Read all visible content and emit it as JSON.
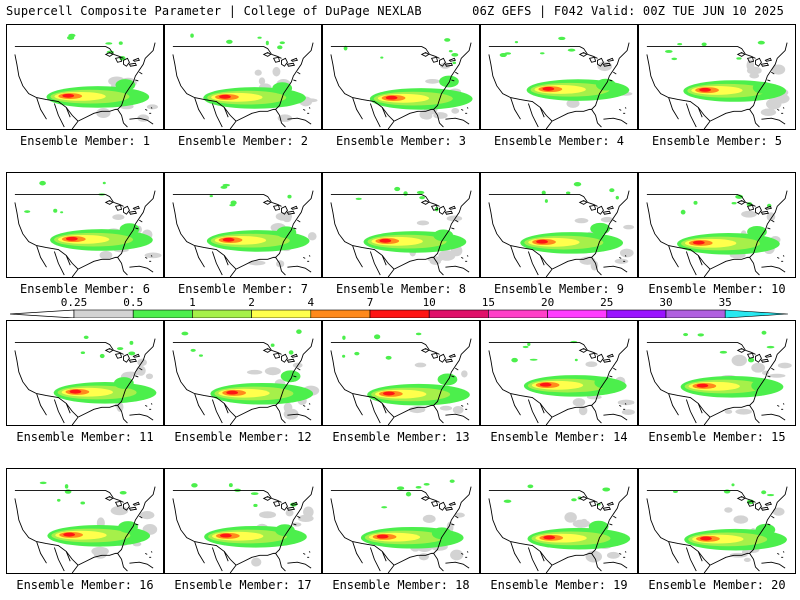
{
  "header": {
    "left_title": "Supercell Composite Parameter | College of DuPage NEXLAB",
    "right_title": "06Z GEFS | F042 Valid: 00Z TUE JUN 10 2025"
  },
  "legend": {
    "thresholds": [
      "0.25",
      "0.5",
      "1",
      "2",
      "4",
      "7",
      "10",
      "15",
      "20",
      "25",
      "30",
      "35"
    ],
    "colors": [
      "#d3d3d3",
      "#4cef4c",
      "#a6f04a",
      "#ffff4c",
      "#ff8a1c",
      "#ff1414",
      "#e0106a",
      "#ff40c8",
      "#ff3cff",
      "#9a14ff",
      "#b060e0",
      "#28e8f0"
    ]
  },
  "members": [
    {
      "label": "Ensemble Member: 1"
    },
    {
      "label": "Ensemble Member: 2"
    },
    {
      "label": "Ensemble Member: 3"
    },
    {
      "label": "Ensemble Member: 4"
    },
    {
      "label": "Ensemble Member: 5"
    },
    {
      "label": "Ensemble Member: 6"
    },
    {
      "label": "Ensemble Member: 7"
    },
    {
      "label": "Ensemble Member: 8"
    },
    {
      "label": "Ensemble Member: 9"
    },
    {
      "label": "Ensemble Member: 10"
    },
    {
      "label": "Ensemble Member: 11"
    },
    {
      "label": "Ensemble Member: 12"
    },
    {
      "label": "Ensemble Member: 13"
    },
    {
      "label": "Ensemble Member: 14"
    },
    {
      "label": "Ensemble Member: 15"
    },
    {
      "label": "Ensemble Member: 16"
    },
    {
      "label": "Ensemble Member: 17"
    },
    {
      "label": "Ensemble Member: 18"
    },
    {
      "label": "Ensemble Member: 19"
    },
    {
      "label": "Ensemble Member: 20"
    }
  ]
}
